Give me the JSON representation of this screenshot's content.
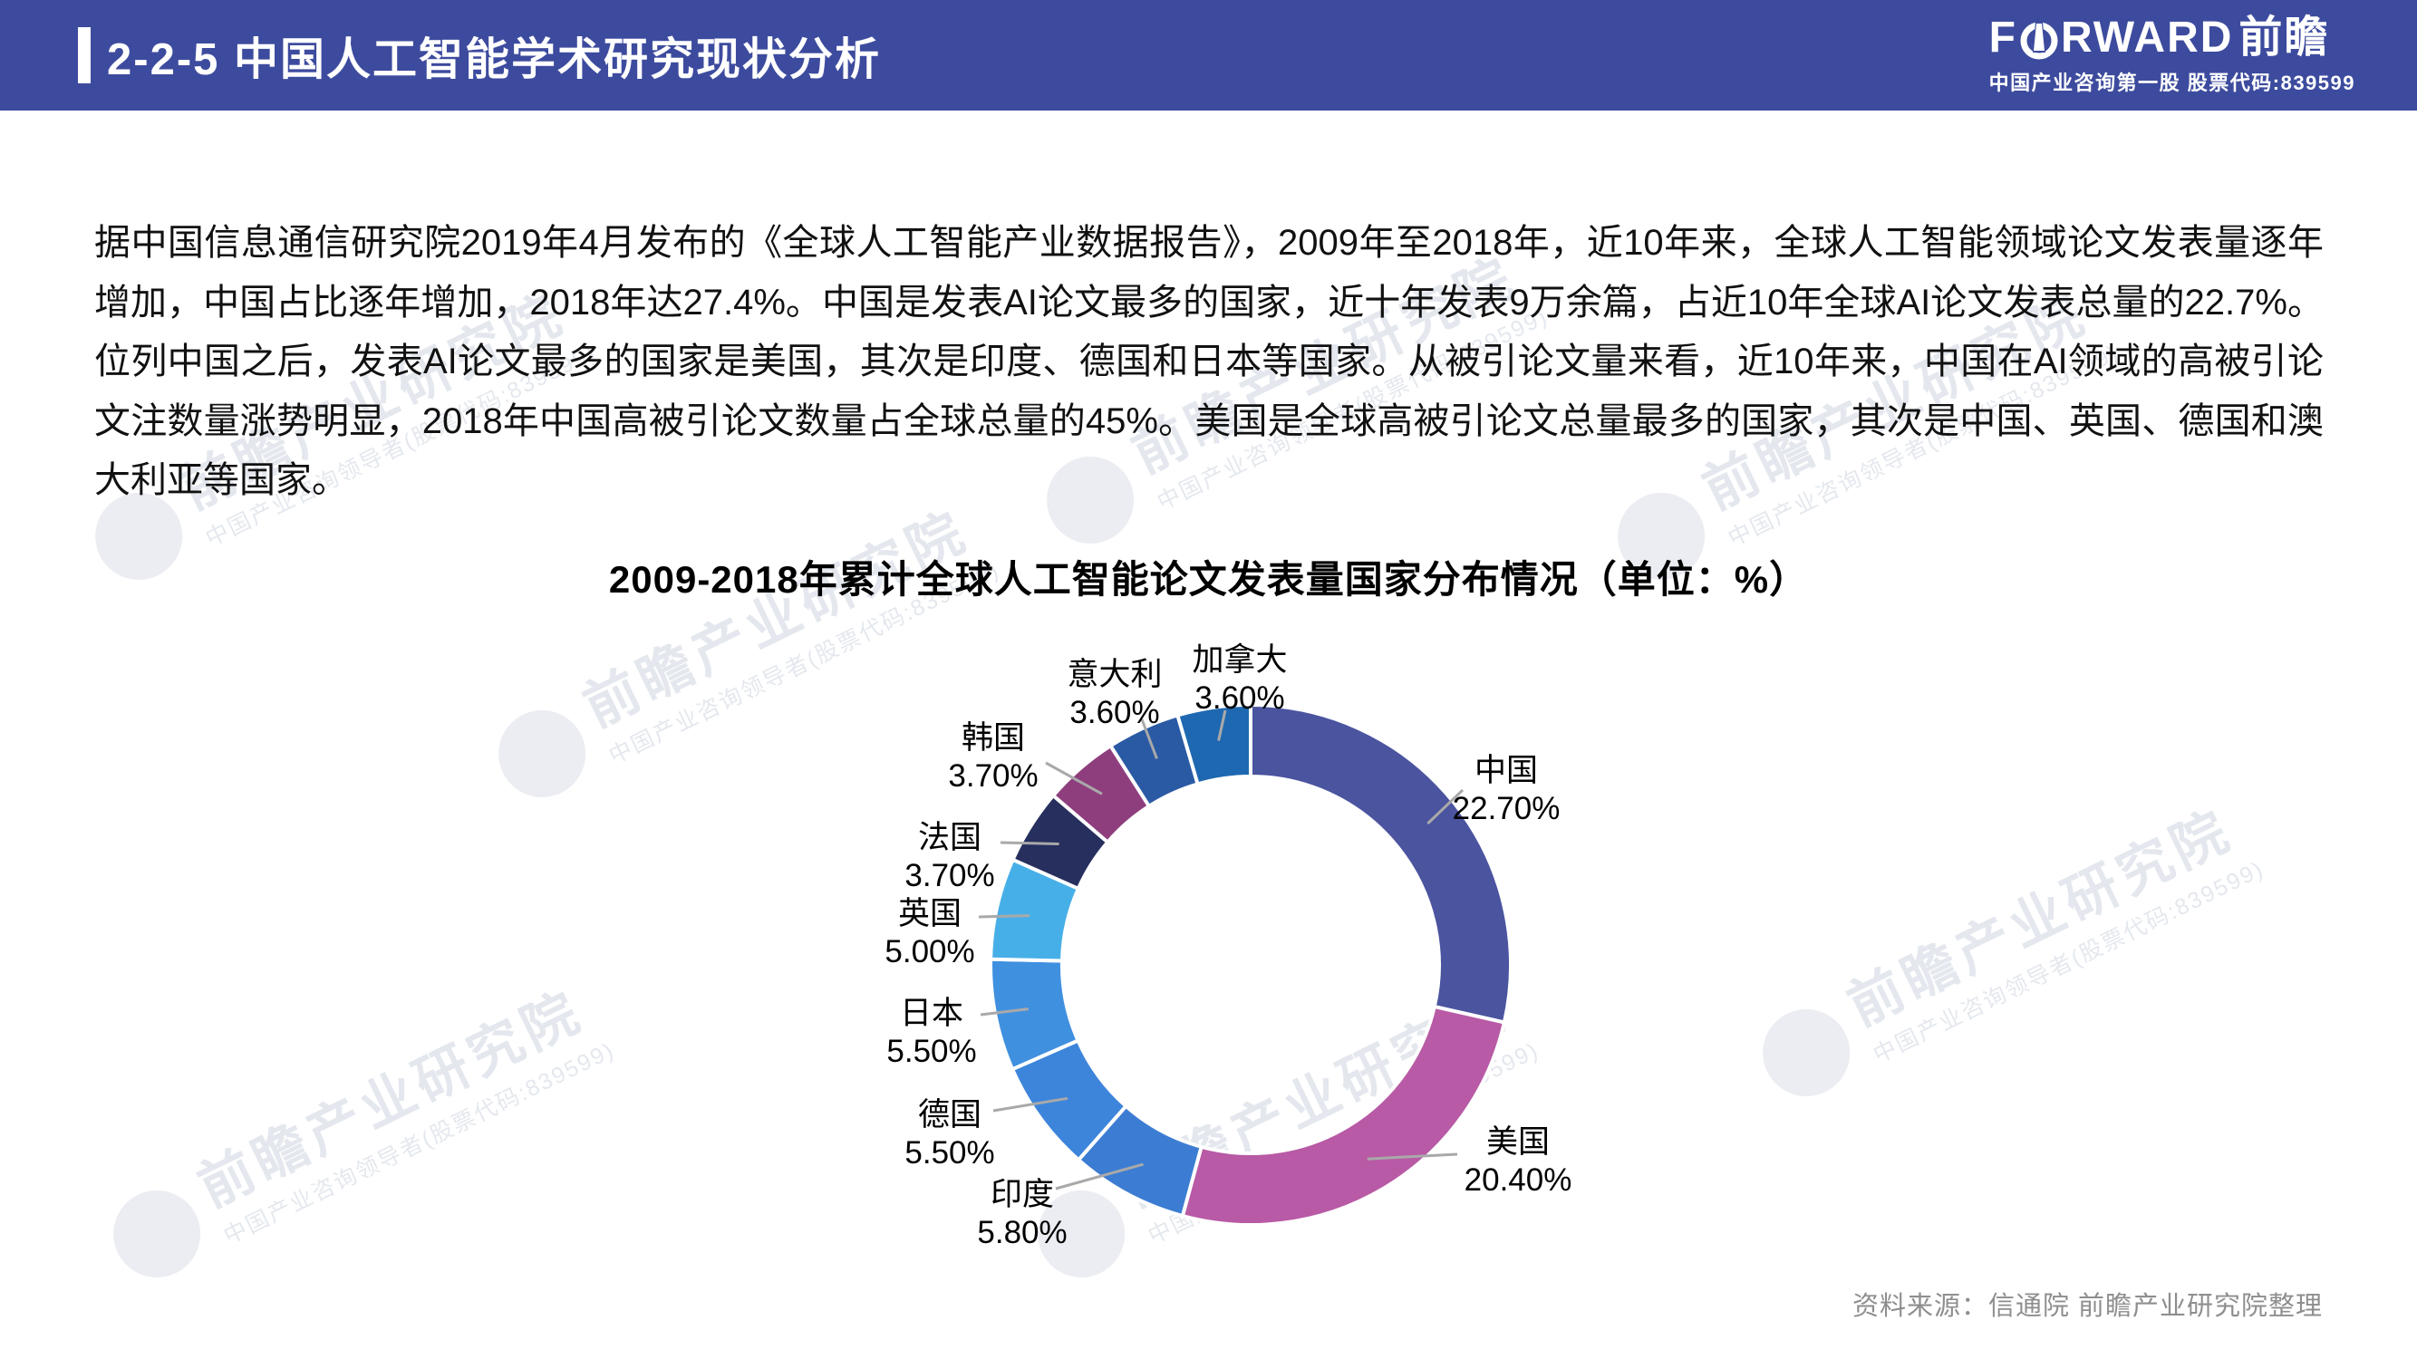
{
  "header": {
    "title": "2-2-5  中国人工智能学术研究现状分析",
    "logo": {
      "prefix": "F",
      "suffix": "RWARD",
      "cn": "前瞻",
      "o_icon": "lighthouse-in-circle",
      "subtitle": "中国产业咨询第一股  股票代码:839599"
    },
    "bar_color": "#3D4B9E"
  },
  "paragraph": "据中国信息通信研究院2019年4月发布的《全球人工智能产业数据报告》，2009年至2018年，近10年来，全球人工智能领域论文发表量逐年增加，中国占比逐年增加，2018年达27.4%。中国是发表AI论文最多的国家，近十年发表9万余篇，占近10年全球AI论文发表总量的22.7%。位列中国之后，发表AI论文最多的国家是美国，其次是印度、德国和日本等国家。从被引论文量来看，近10年来，中国在AI领域的高被引论文注数量涨势明显，2018年中国高被引论文数量占全球总量的45%。美国是全球高被引论文总量最多的国家，其次是中国、英国、德国和澳大利亚等国家。",
  "chart_data": {
    "type": "pie",
    "subtype": "donut",
    "title": "2009-2018年累计全球人工智能论文发表量国家分布情况（单位：%）",
    "categories": [
      "中国",
      "美国",
      "印度",
      "德国",
      "日本",
      "英国",
      "法国",
      "韩国",
      "意大利",
      "加拿大"
    ],
    "values": [
      22.7,
      20.4,
      5.8,
      5.5,
      5.5,
      5.0,
      3.7,
      3.7,
      3.6,
      3.6
    ],
    "value_labels": [
      "22.70%",
      "20.40%",
      "5.80%",
      "5.50%",
      "5.50%",
      "5.00%",
      "3.70%",
      "3.70%",
      "3.60%",
      "3.60%"
    ],
    "colors": [
      "#4A549F",
      "#B85AA5",
      "#3C7DD3",
      "#3D85DB",
      "#4090E0",
      "#47AFE8",
      "#272F5E",
      "#8E3E7D",
      "#2B5AA4",
      "#1E68B1"
    ],
    "start_angle_deg": 0,
    "direction": "clockwise",
    "legend": "none",
    "labels_style": "outside-with-gray-leader-lines",
    "leader_line_color": "#A9A9A9",
    "gap_color": "#FFFFFF"
  },
  "watermark": {
    "main": "前瞻产业研究院",
    "sub": "中国产业咨询领导者(股票代码:839599)"
  },
  "source": "资料来源：信通院 前瞻产业研究院整理"
}
